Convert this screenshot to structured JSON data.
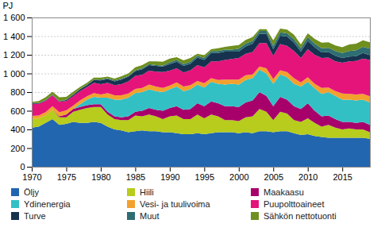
{
  "chart_data": {
    "type": "area",
    "stacked": true,
    "grid": true,
    "y_label": "PJ",
    "x": [
      1970,
      1971,
      1972,
      1973,
      1974,
      1975,
      1976,
      1977,
      1978,
      1979,
      1980,
      1981,
      1982,
      1983,
      1984,
      1985,
      1986,
      1987,
      1988,
      1989,
      1990,
      1991,
      1992,
      1993,
      1994,
      1995,
      1996,
      1997,
      1998,
      1999,
      2000,
      2001,
      2002,
      2003,
      2004,
      2005,
      2006,
      2007,
      2008,
      2009,
      2010,
      2011,
      2012,
      2013,
      2014,
      2015,
      2016,
      2017,
      2018,
      2019
    ],
    "xlim": [
      1970,
      2019
    ],
    "xticks": [
      1970,
      1975,
      1980,
      1985,
      1990,
      1995,
      2000,
      2005,
      2010,
      2015
    ],
    "ylim": [
      0,
      1600
    ],
    "yticks": [
      0,
      200,
      400,
      600,
      800,
      {
        "value": 1000,
        "label": "1 000"
      },
      {
        "value": 1200,
        "label": "1 200"
      },
      {
        "value": 1400,
        "label": "1 400"
      },
      {
        "value": 1600,
        "label": "1 600"
      }
    ],
    "series": [
      {
        "name": "Öljy",
        "color": "#2266b0",
        "values": [
          420,
          430,
          470,
          510,
          450,
          460,
          480,
          470,
          470,
          480,
          470,
          430,
          400,
          390,
          370,
          380,
          390,
          380,
          380,
          370,
          370,
          360,
          350,
          350,
          360,
          350,
          360,
          370,
          370,
          370,
          360,
          370,
          360,
          380,
          380,
          370,
          380,
          380,
          360,
          340,
          350,
          330,
          320,
          310,
          310,
          310,
          310,
          310,
          310,
          300
        ]
      },
      {
        "name": "Hiili",
        "color": "#b7cc1c",
        "values": [
          90,
          90,
          80,
          100,
          80,
          70,
          110,
          140,
          160,
          160,
          170,
          130,
          110,
          110,
          130,
          170,
          150,
          180,
          160,
          140,
          170,
          190,
          160,
          160,
          200,
          170,
          200,
          170,
          130,
          130,
          130,
          160,
          180,
          240,
          210,
          130,
          210,
          190,
          140,
          140,
          170,
          140,
          110,
          140,
          110,
          90,
          100,
          90,
          90,
          70
        ]
      },
      {
        "name": "Maakaasu",
        "color": "#a8006b",
        "values": [
          0,
          0,
          0,
          0,
          10,
          30,
          30,
          30,
          30,
          30,
          30,
          30,
          30,
          30,
          40,
          40,
          60,
          70,
          70,
          90,
          90,
          100,
          100,
          110,
          120,
          130,
          140,
          140,
          150,
          150,
          150,
          160,
          170,
          180,
          170,
          150,
          160,
          150,
          150,
          140,
          160,
          130,
          110,
          100,
          90,
          80,
          70,
          70,
          80,
          80
        ]
      },
      {
        "name": "Ydinenergia",
        "color": "#33c0c4",
        "values": [
          0,
          0,
          0,
          0,
          0,
          0,
          0,
          30,
          60,
          80,
          70,
          150,
          180,
          190,
          200,
          200,
          200,
          200,
          200,
          200,
          200,
          210,
          200,
          210,
          200,
          200,
          210,
          210,
          230,
          240,
          240,
          240,
          240,
          240,
          240,
          240,
          240,
          240,
          240,
          240,
          230,
          240,
          240,
          250,
          250,
          240,
          240,
          240,
          240,
          240
        ]
      },
      {
        "name": "Vesi- ja tuulivoima",
        "color": "#f2a12e",
        "values": [
          35,
          30,
          35,
          40,
          45,
          45,
          35,
          40,
          35,
          40,
          35,
          50,
          45,
          45,
          45,
          45,
          45,
          50,
          50,
          45,
          40,
          45,
          50,
          45,
          40,
          45,
          40,
          40,
          55,
          45,
          55,
          50,
          40,
          35,
          55,
          50,
          45,
          55,
          60,
          45,
          50,
          50,
          65,
          50,
          50,
          65,
          60,
          65,
          60,
          65
        ]
      },
      {
        "name": "Puupolttoaineet",
        "color": "#e5147a",
        "values": [
          130,
          125,
          120,
          115,
          110,
          100,
          100,
          100,
          100,
          110,
          110,
          110,
          110,
          120,
          130,
          140,
          140,
          150,
          160,
          170,
          160,
          150,
          150,
          160,
          170,
          170,
          180,
          200,
          210,
          220,
          230,
          230,
          240,
          250,
          270,
          250,
          280,
          280,
          290,
          260,
          300,
          310,
          320,
          320,
          320,
          330,
          350,
          360,
          380,
          390
        ]
      },
      {
        "name": "Turve",
        "color": "#16324f",
        "values": [
          5,
          5,
          5,
          5,
          5,
          10,
          15,
          20,
          20,
          30,
          40,
          40,
          40,
          50,
          50,
          50,
          60,
          60,
          60,
          60,
          70,
          70,
          70,
          70,
          80,
          80,
          90,
          90,
          90,
          80,
          70,
          80,
          90,
          100,
          100,
          70,
          90,
          100,
          90,
          70,
          90,
          80,
          60,
          60,
          60,
          50,
          50,
          50,
          60,
          50
        ]
      },
      {
        "name": "Muut",
        "color": "#2e6e73",
        "values": [
          5,
          5,
          5,
          5,
          5,
          5,
          5,
          5,
          5,
          5,
          10,
          10,
          10,
          10,
          10,
          10,
          10,
          10,
          10,
          10,
          20,
          20,
          20,
          20,
          20,
          20,
          20,
          20,
          20,
          20,
          30,
          30,
          30,
          30,
          30,
          35,
          35,
          35,
          35,
          35,
          40,
          40,
          45,
          45,
          50,
          55,
          60,
          65,
          65,
          70
        ]
      },
      {
        "name": "Sähkön nettotuonti",
        "color": "#6f8f1f",
        "values": [
          10,
          20,
          30,
          30,
          40,
          30,
          30,
          20,
          20,
          20,
          20,
          15,
          20,
          25,
          25,
          30,
          35,
          30,
          40,
          40,
          40,
          30,
          40,
          40,
          20,
          30,
          20,
          30,
          30,
          40,
          40,
          40,
          40,
          20,
          20,
          60,
          40,
          40,
          50,
          40,
          40,
          50,
          60,
          60,
          60,
          60,
          70,
          70,
          70,
          70
        ]
      }
    ]
  }
}
